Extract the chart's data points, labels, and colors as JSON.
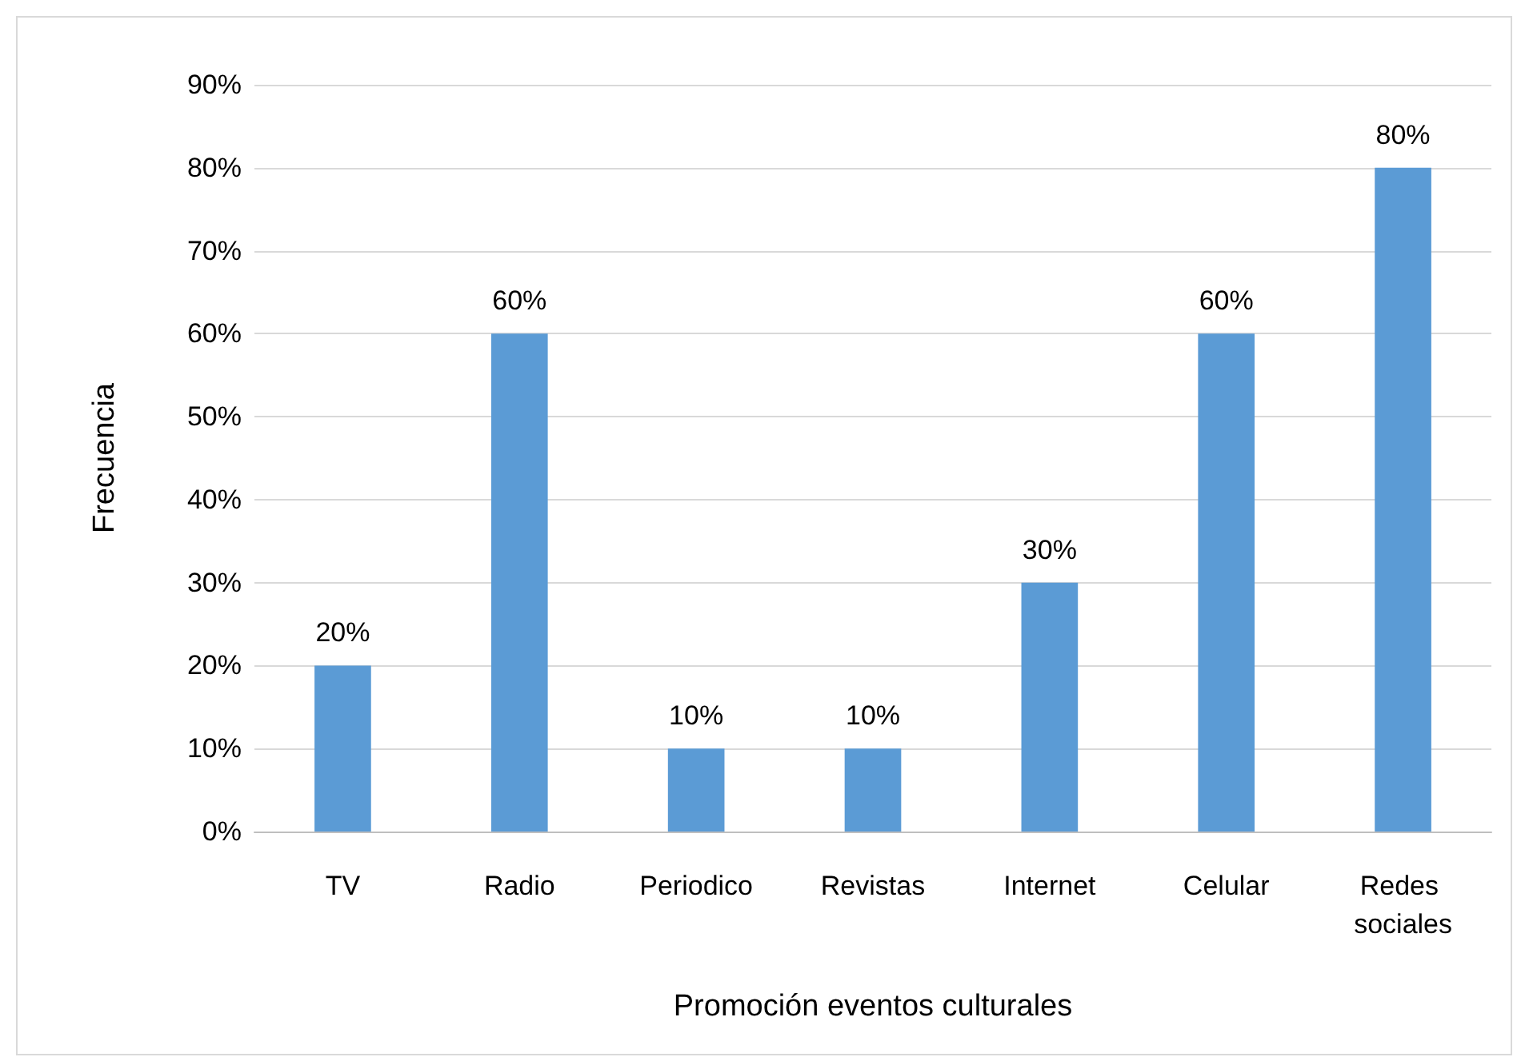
{
  "chart_data": {
    "type": "bar",
    "xlabel": "Promoción eventos culturales",
    "ylabel": "Frecuencia",
    "categories": [
      "TV",
      "Radio",
      "Periodico",
      "Revistas",
      "Internet",
      "Celular",
      "Redes sociales"
    ],
    "values": [
      20,
      60,
      10,
      10,
      30,
      60,
      80
    ],
    "value_labels": [
      "20%",
      "60%",
      "10%",
      "10%",
      "30%",
      "60%",
      "80%"
    ],
    "color": "#5b9bd5",
    "ylim": [
      0,
      90
    ],
    "yticks": [
      {
        "value": 0,
        "label": "0%"
      },
      {
        "value": 10,
        "label": "10%"
      },
      {
        "value": 20,
        "label": "20%"
      },
      {
        "value": 30,
        "label": "30%"
      },
      {
        "value": 40,
        "label": "40%"
      },
      {
        "value": 50,
        "label": "50%"
      },
      {
        "value": 60,
        "label": "60%"
      },
      {
        "value": 70,
        "label": "70%"
      },
      {
        "value": 80,
        "label": "80%"
      },
      {
        "value": 90,
        "label": "90%"
      }
    ],
    "grid": "y"
  }
}
